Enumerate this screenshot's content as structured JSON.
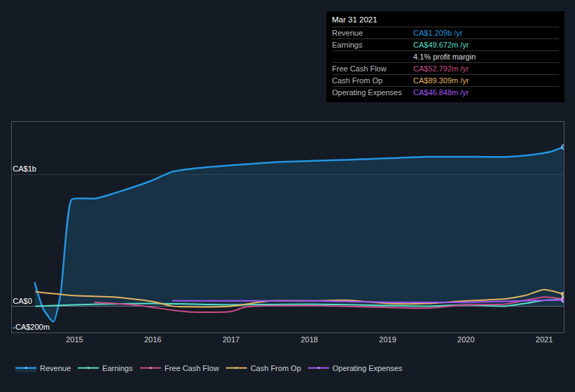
{
  "chart_data": {
    "type": "line",
    "xlim": [
      2014.2,
      2021.25
    ],
    "xticks": [
      2015,
      2016,
      2017,
      2018,
      2019,
      2020,
      2021
    ],
    "ylim": [
      -200,
      1400
    ],
    "yticks": [
      {
        "value": -200,
        "label": "-CA$200m"
      },
      {
        "value": 0,
        "label": "CA$0"
      },
      {
        "value": 1000,
        "label": "CA$1b"
      }
    ],
    "grid": true,
    "legend": "bottom",
    "series": [
      {
        "name": "Revenue",
        "color": "#2394df",
        "x": [
          2014.49,
          2014.6,
          2014.73,
          2014.82,
          2014.96,
          2015.05,
          2015.27,
          2015.5,
          2015.98,
          2016.25,
          2016.56,
          2017.0,
          2017.5,
          2018.0,
          2018.52,
          2019.0,
          2019.5,
          2020.0,
          2020.54,
          2020.85,
          2021.07,
          2021.25
        ],
        "values": [
          182,
          -20,
          -118,
          85,
          807,
          818,
          818,
          856,
          952,
          1021,
          1048,
          1070,
          1091,
          1102,
          1112,
          1123,
          1134,
          1134,
          1134,
          1150,
          1171,
          1209
        ]
      },
      {
        "name": "Earnings",
        "color": "#59dfc7",
        "x": [
          2014.5,
          2015.0,
          2016.0,
          2017.0,
          2018.0,
          2019.0,
          2019.5,
          2020.0,
          2020.5,
          2020.75,
          2021.0,
          2021.25
        ],
        "values": [
          0,
          10,
          20,
          10,
          15,
          5,
          0,
          10,
          0,
          20,
          45,
          49.672
        ]
      },
      {
        "name": "Free Cash Flow",
        "color": "#c84d87",
        "x": [
          2015.25,
          2015.75,
          2016.25,
          2016.5,
          2017.0,
          2017.2,
          2018.0,
          2019.0,
          2019.5,
          2020.0,
          2020.5,
          2021.0,
          2021.25
        ],
        "values": [
          30,
          10,
          -30,
          -45,
          -40,
          -5,
          5,
          -10,
          -15,
          10,
          15,
          70,
          52.792
        ]
      },
      {
        "name": "Cash From Op",
        "color": "#e2b35f",
        "x": [
          2014.5,
          2015.0,
          2015.5,
          2016.0,
          2016.25,
          2016.5,
          2017.0,
          2017.5,
          2018.0,
          2018.5,
          2019.0,
          2019.5,
          2020.0,
          2020.5,
          2020.75,
          2021.0,
          2021.25
        ],
        "values": [
          110,
          80,
          70,
          35,
          0,
          -5,
          0,
          40,
          40,
          45,
          20,
          20,
          40,
          55,
          80,
          125,
          89.309
        ]
      },
      {
        "name": "Operating Expenses",
        "color": "#a255f5",
        "x": [
          2016.25,
          2017.0,
          2018.0,
          2019.0,
          2020.0,
          2021.0,
          2021.25
        ],
        "values": [
          40,
          40,
          40,
          30,
          30,
          45,
          46.848
        ]
      }
    ],
    "tooltip": {
      "date": "Mar 31 2021",
      "rows": [
        {
          "label": "Revenue",
          "value": "CA$1.209b /yr"
        },
        {
          "label": "Earnings",
          "value": "CA$49.672m /yr"
        },
        {
          "label": "",
          "value": "4.1% profit margin"
        },
        {
          "label": "Free Cash Flow",
          "value": "CA$52.792m /yr"
        },
        {
          "label": "Cash From Op",
          "value": "CA$89.309m /yr"
        },
        {
          "label": "Operating Expenses",
          "value": "CA$46.848m /yr"
        }
      ]
    }
  }
}
